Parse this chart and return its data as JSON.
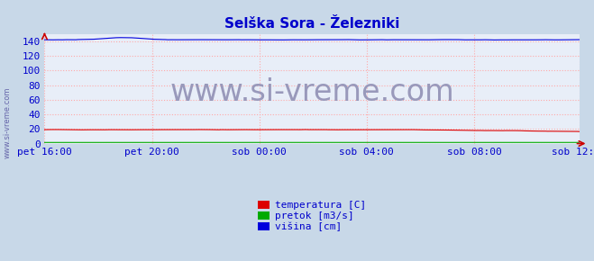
{
  "title": "Selška Sora - Železniki",
  "title_color": "#0000cc",
  "bg_color": "#c8d8e8",
  "plot_bg_color": "#e8eef8",
  "grid_color": "#ffaaaa",
  "grid_linestyle": ":",
  "yticks": [
    0,
    20,
    40,
    60,
    80,
    100,
    120,
    140
  ],
  "ylim": [
    0,
    150
  ],
  "xtick_labels": [
    "pet 16:00",
    "pet 20:00",
    "sob 00:00",
    "sob 04:00",
    "sob 08:00",
    "sob 12:00"
  ],
  "xtick_positions": [
    0,
    48,
    96,
    144,
    192,
    239
  ],
  "n_points": 240,
  "temperatura_value": 19.0,
  "visina_value": 142.0,
  "pretok_value": 1.5,
  "line_colors": {
    "temperatura": "#dd0000",
    "pretok": "#00aa00",
    "visina": "#0000dd"
  },
  "watermark": "www.si-vreme.com",
  "watermark_color": "#9999bb",
  "watermark_fontsize": 24,
  "side_label": "www.si-vreme.com",
  "side_label_color": "#6666aa",
  "side_label_fontsize": 6,
  "legend_labels": [
    "temperatura [C]",
    "pretok [m3/s]",
    "višina [cm]"
  ],
  "legend_colors": [
    "#dd0000",
    "#00aa00",
    "#0000dd"
  ],
  "tick_color": "#0000cc",
  "tick_fontsize": 8,
  "title_fontsize": 11
}
